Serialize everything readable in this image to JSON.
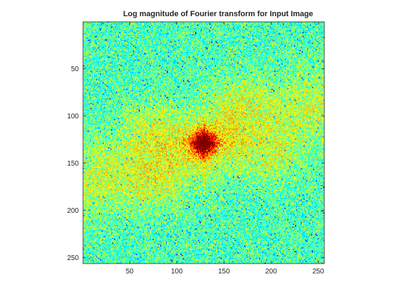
{
  "chart_data": {
    "type": "heatmap",
    "title": "Log magnitude of Fourier transform for Input Image",
    "xlabel": "",
    "ylabel": "",
    "xlim": [
      0.5,
      256.5
    ],
    "ylim": [
      0.5,
      256.5
    ],
    "y_direction": "reverse",
    "x_ticks": [
      50,
      100,
      150,
      200,
      250
    ],
    "y_ticks": [
      50,
      100,
      150,
      200,
      250
    ],
    "x_tick_labels": [
      "50",
      "100",
      "150",
      "200",
      "250"
    ],
    "y_tick_labels": [
      "50",
      "100",
      "150",
      "200",
      "250"
    ],
    "colormap": "jet",
    "grid": false,
    "peak": {
      "x": 129,
      "y": 129
    },
    "bright_lobes": [
      {
        "x": 70,
        "y": 110
      },
      {
        "x": 205,
        "y": 150
      },
      {
        "x": 165,
        "y": 80
      },
      {
        "x": 75,
        "y": 175
      }
    ],
    "description_values": {
      "background_level": 0.45,
      "peak_level": 1.0,
      "lobe_level": 0.7
    }
  }
}
